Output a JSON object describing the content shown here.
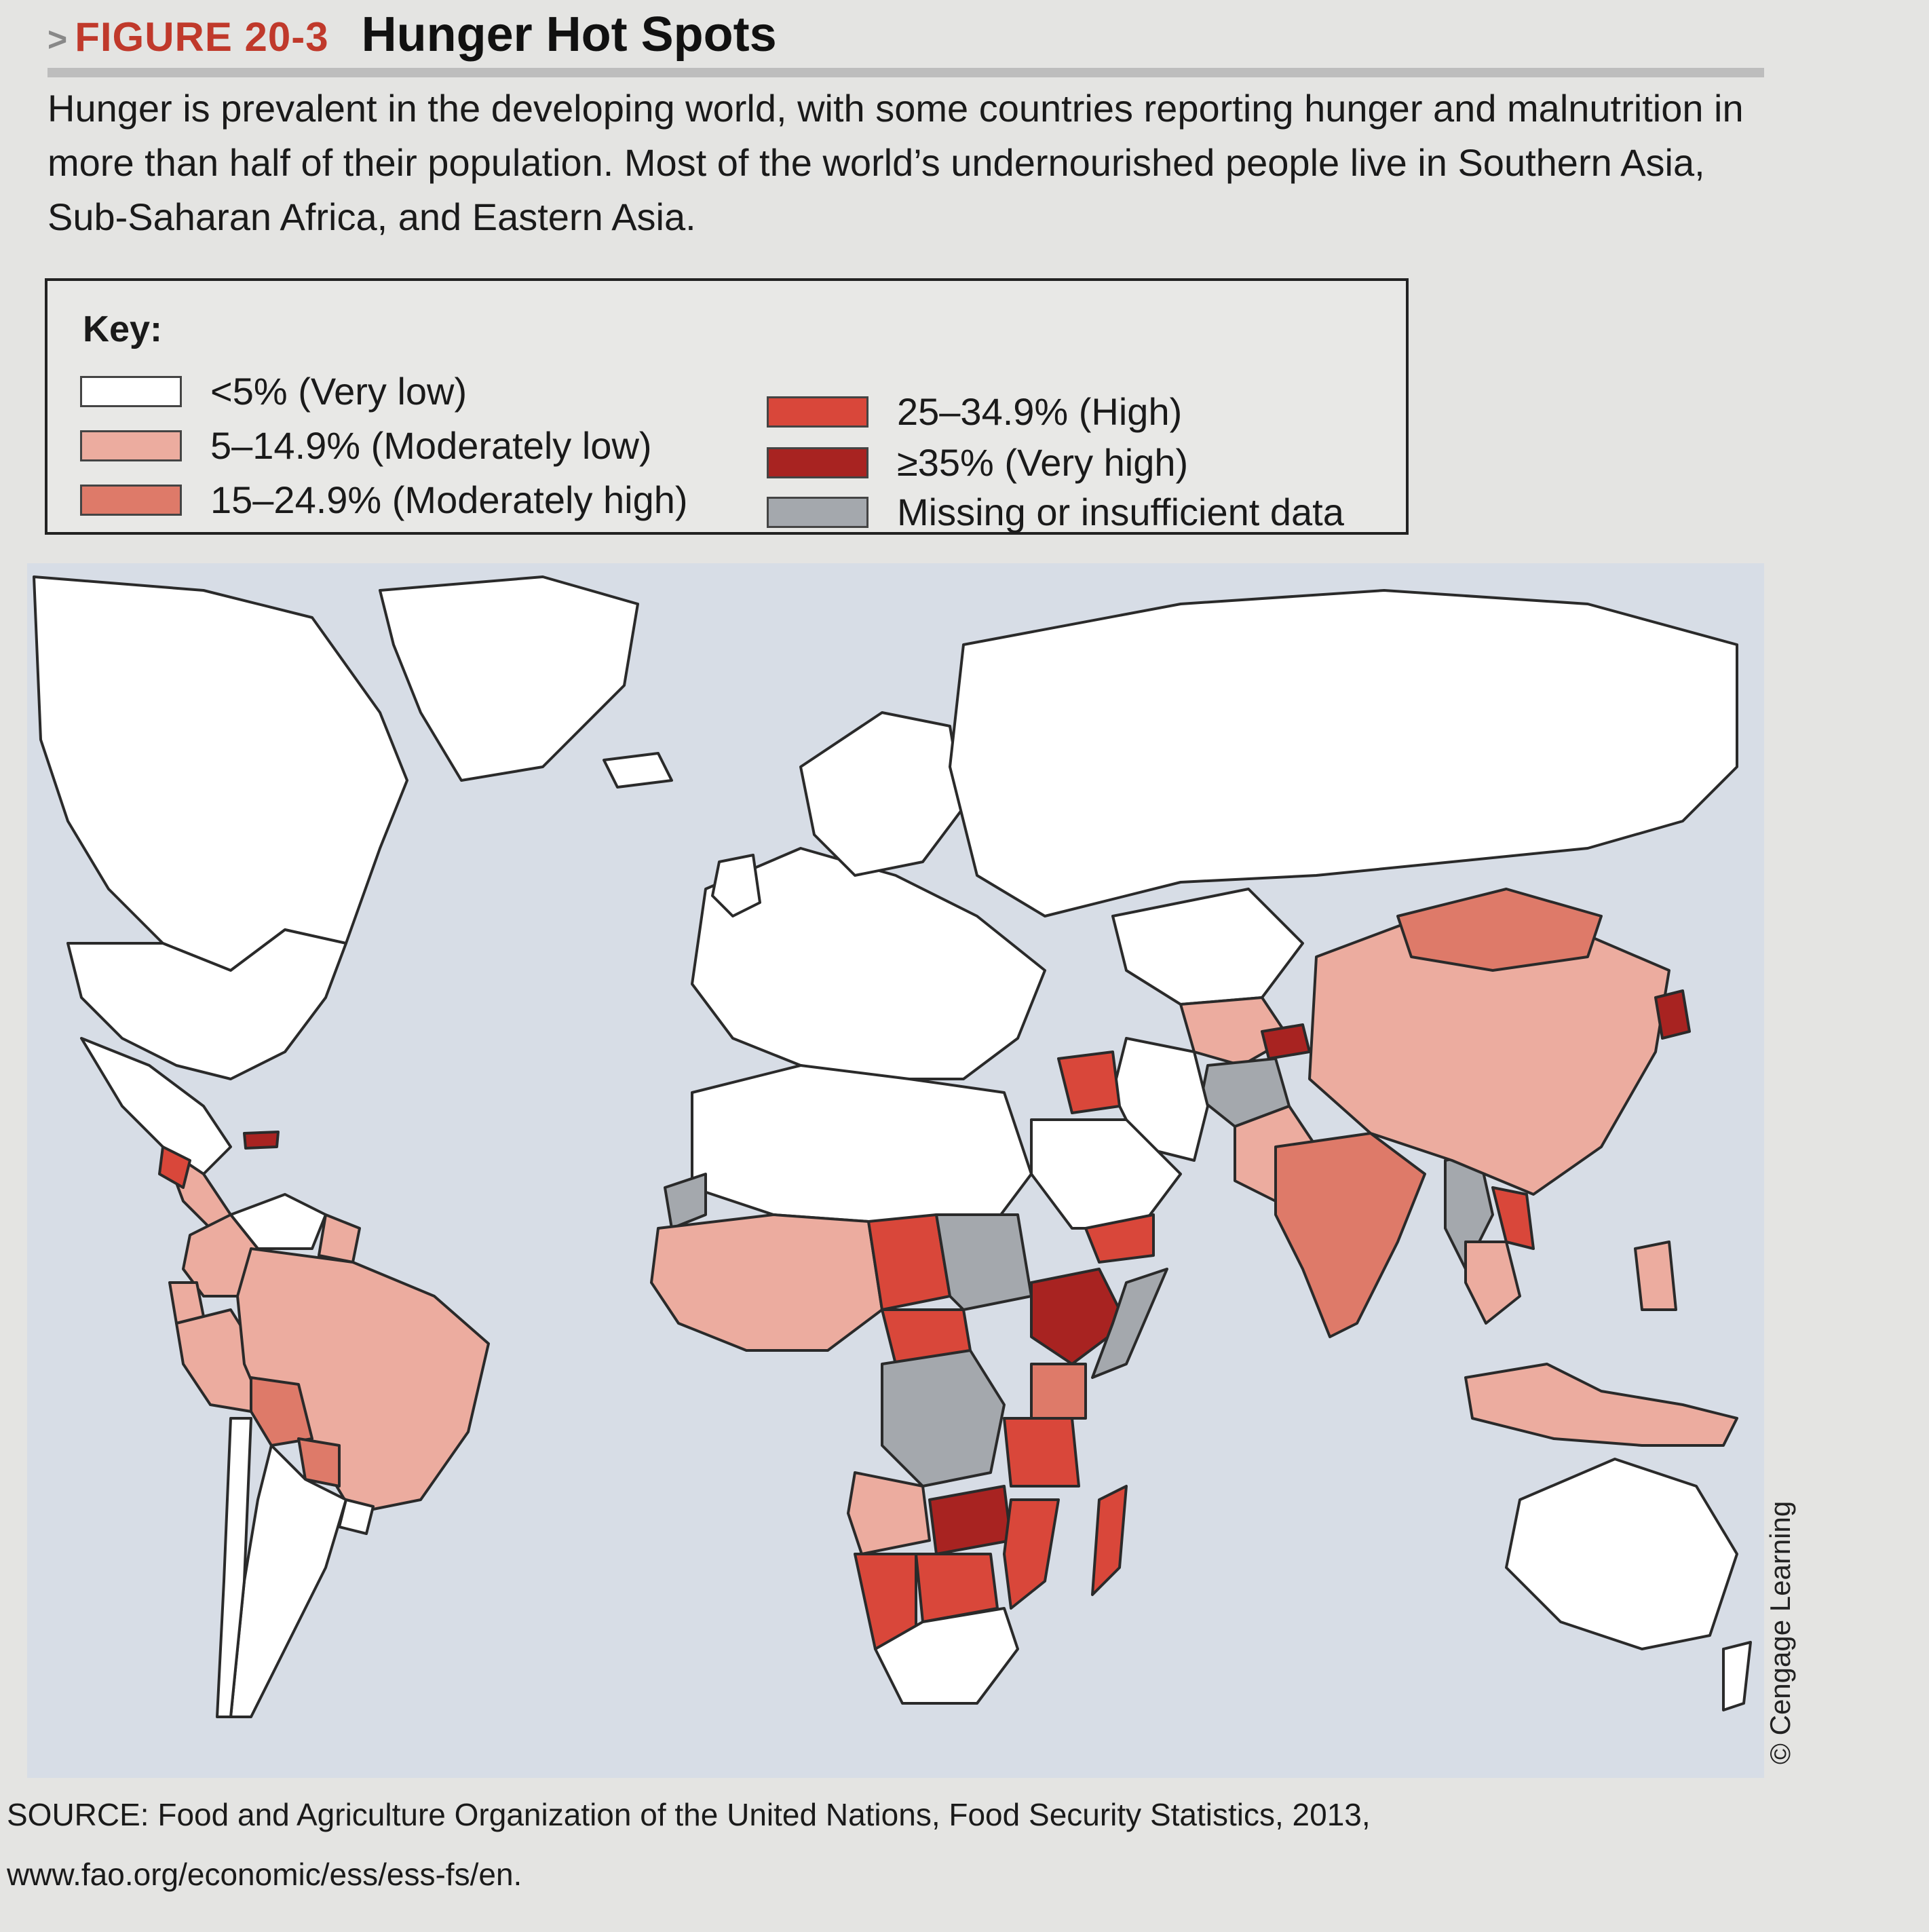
{
  "figure": {
    "label": "FIGURE 20-3",
    "title": "Hunger Hot Spots",
    "caption": "Hunger is prevalent in the developing world, with some countries reporting hunger and malnutrition in more than half of their population. Most of the world’s undernourished people live in Southern Asia, Sub-Saharan Africa, and Eastern Asia."
  },
  "key": {
    "title": "Key:",
    "items": [
      {
        "label": "<5% (Very low)",
        "color": "#ffffff"
      },
      {
        "label": "5–14.9% (Moderately low)",
        "color": "#ecac9f"
      },
      {
        "label": "15–24.9% (Moderately high)",
        "color": "#de7a69"
      },
      {
        "label": "25–34.9% (High)",
        "color": "#d9473a"
      },
      {
        "label": "≥35% (Very high)",
        "color": "#a82321"
      },
      {
        "label": "Missing or insufficient data",
        "color": "#a4a8ad"
      }
    ]
  },
  "map": {
    "ocean_color": "#d7dde6",
    "regions": [
      {
        "name": "Canada",
        "category": 0
      },
      {
        "name": "United States",
        "category": 0
      },
      {
        "name": "Greenland",
        "category": 0
      },
      {
        "name": "Mexico",
        "category": 0
      },
      {
        "name": "Central America",
        "category": 1
      },
      {
        "name": "Guatemala",
        "category": 3
      },
      {
        "name": "Haiti",
        "category": 4
      },
      {
        "name": "Venezuela",
        "category": 0
      },
      {
        "name": "Guyana",
        "category": 1
      },
      {
        "name": "Colombia",
        "category": 1
      },
      {
        "name": "Ecuador",
        "category": 1
      },
      {
        "name": "Peru",
        "category": 1
      },
      {
        "name": "Brazil",
        "category": 1
      },
      {
        "name": "Bolivia",
        "category": 2
      },
      {
        "name": "Paraguay",
        "category": 2
      },
      {
        "name": "Argentina",
        "category": 0
      },
      {
        "name": "Chile",
        "category": 0
      },
      {
        "name": "Uruguay",
        "category": 0
      },
      {
        "name": "Europe",
        "category": 0
      },
      {
        "name": "Scandinavia",
        "category": 0
      },
      {
        "name": "United Kingdom",
        "category": 0
      },
      {
        "name": "Iceland",
        "category": 0
      },
      {
        "name": "Russia",
        "category": 0
      },
      {
        "name": "Kazakhstan",
        "category": 0
      },
      {
        "name": "Central Asia",
        "category": 1
      },
      {
        "name": "Tajikistan",
        "category": 4
      },
      {
        "name": "Afghanistan",
        "category": 5
      },
      {
        "name": "Pakistan",
        "category": 1
      },
      {
        "name": "India",
        "category": 2
      },
      {
        "name": "Myanmar",
        "category": 5
      },
      {
        "name": "Laos",
        "category": 3
      },
      {
        "name": "Thailand",
        "category": 1
      },
      {
        "name": "China",
        "category": 1
      },
      {
        "name": "Mongolia",
        "category": 2
      },
      {
        "name": "North Korea",
        "category": 4
      },
      {
        "name": "Indonesia",
        "category": 1
      },
      {
        "name": "Philippines",
        "category": 1
      },
      {
        "name": "Iran",
        "category": 0
      },
      {
        "name": "Iraq",
        "category": 3
      },
      {
        "name": "Saudi Arabia",
        "category": 0
      },
      {
        "name": "Yemen",
        "category": 3
      },
      {
        "name": "North Africa",
        "category": 0
      },
      {
        "name": "Western Sahara",
        "category": 5
      },
      {
        "name": "West Africa",
        "category": 1
      },
      {
        "name": "Chad",
        "category": 3
      },
      {
        "name": "Sudan",
        "category": 5
      },
      {
        "name": "Ethiopia",
        "category": 4
      },
      {
        "name": "Somalia",
        "category": 5
      },
      {
        "name": "Central African Republic",
        "category": 3
      },
      {
        "name": "DR Congo",
        "category": 5
      },
      {
        "name": "Kenya",
        "category": 2
      },
      {
        "name": "Tanzania",
        "category": 3
      },
      {
        "name": "Angola",
        "category": 1
      },
      {
        "name": "Zambia",
        "category": 4
      },
      {
        "name": "Mozambique",
        "category": 3
      },
      {
        "name": "Namibia",
        "category": 3
      },
      {
        "name": "Botswana",
        "category": 3
      },
      {
        "name": "South Africa",
        "category": 0
      },
      {
        "name": "Madagascar",
        "category": 3
      },
      {
        "name": "Australia",
        "category": 0
      },
      {
        "name": "New Zealand",
        "category": 0
      }
    ]
  },
  "source": "SOURCE: Food and Agriculture Organization of the United Nations, Food Security Statistics, 2013, www.fao.org/economic/ess/ess-fs/en.",
  "credit": "© Cengage Learning"
}
